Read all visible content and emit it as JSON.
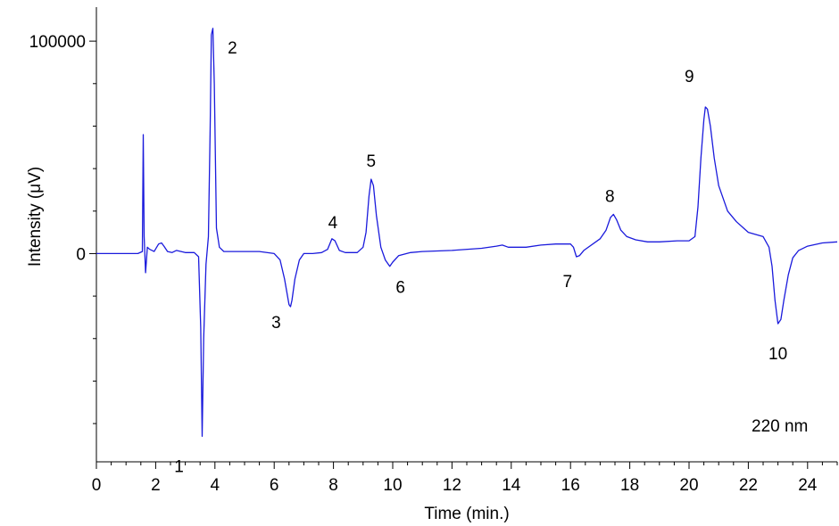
{
  "chart_data": {
    "type": "line",
    "xlabel": "Time (min.)",
    "ylabel": "Intensity (μV)",
    "annotation": "220 nm",
    "xlim": [
      0,
      25
    ],
    "ylim": [
      -98000,
      116000
    ],
    "x_ticks": [
      {
        "value": 0,
        "label": "0"
      },
      {
        "value": 2,
        "label": "2"
      },
      {
        "value": 4,
        "label": "4"
      },
      {
        "value": 6,
        "label": "6"
      },
      {
        "value": 8,
        "label": "8"
      },
      {
        "value": 10,
        "label": "10"
      },
      {
        "value": 12,
        "label": "12"
      },
      {
        "value": 14,
        "label": "14"
      },
      {
        "value": 16,
        "label": "16"
      },
      {
        "value": 18,
        "label": "18"
      },
      {
        "value": 20,
        "label": "20"
      },
      {
        "value": 22,
        "label": "22"
      },
      {
        "value": 24,
        "label": "24"
      }
    ],
    "y_ticks": [
      {
        "value": 0,
        "label": "0"
      },
      {
        "value": 100000,
        "label": "100000"
      }
    ],
    "peaks": [
      {
        "label": "1",
        "time": 3.57,
        "height": -86000
      },
      {
        "label": "2",
        "time": 3.93,
        "height": 106000
      },
      {
        "label": "3",
        "time": 6.55,
        "height": -25000
      },
      {
        "label": "4",
        "time": 7.98,
        "height": 7000
      },
      {
        "label": "5",
        "time": 9.27,
        "height": 35000
      },
      {
        "label": "6",
        "time": 9.9,
        "height": -6000
      },
      {
        "label": "7",
        "time": 16.2,
        "height": -1500
      },
      {
        "label": "8",
        "time": 17.45,
        "height": 18500
      },
      {
        "label": "9",
        "time": 20.55,
        "height": 69000
      },
      {
        "label": "10",
        "time": 23.0,
        "height": -33000
      }
    ],
    "series": [
      {
        "color": "#1a1adc",
        "x": [
          0,
          1.4,
          1.55,
          1.58,
          1.61,
          1.66,
          1.72,
          1.8,
          1.95,
          2.1,
          2.2,
          2.28,
          2.4,
          2.55,
          2.7,
          3.0,
          3.3,
          3.45,
          3.52,
          3.57,
          3.62,
          3.7,
          3.78,
          3.84,
          3.88,
          3.93,
          3.98,
          4.05,
          4.15,
          4.3,
          4.6,
          5.0,
          5.5,
          6.0,
          6.2,
          6.35,
          6.5,
          6.55,
          6.6,
          6.7,
          6.85,
          7.0,
          7.3,
          7.6,
          7.8,
          7.95,
          8.05,
          8.2,
          8.4,
          8.8,
          9.0,
          9.1,
          9.2,
          9.27,
          9.35,
          9.45,
          9.6,
          9.75,
          9.9,
          10.0,
          10.2,
          10.6,
          11.0,
          12.0,
          13.0,
          13.5,
          13.7,
          13.9,
          14.5,
          15.0,
          15.5,
          16.0,
          16.1,
          16.2,
          16.3,
          16.45,
          17.0,
          17.2,
          17.35,
          17.45,
          17.55,
          17.7,
          17.9,
          18.2,
          18.6,
          19.0,
          19.6,
          20.0,
          20.2,
          20.3,
          20.4,
          20.5,
          20.55,
          20.62,
          20.72,
          20.85,
          21.0,
          21.3,
          21.6,
          22.0,
          22.5,
          22.7,
          22.8,
          22.9,
          23.0,
          23.1,
          23.2,
          23.35,
          23.5,
          23.7,
          24.0,
          24.5,
          25.0
        ],
        "y": [
          0,
          0,
          1000,
          56000,
          8000,
          -9000,
          3000,
          2000,
          1000,
          4500,
          5000,
          3500,
          1000,
          500,
          1500,
          500,
          500,
          -1500,
          -35000,
          -86000,
          -40000,
          -5000,
          8000,
          60000,
          103000,
          106000,
          80000,
          12000,
          3000,
          1000,
          1000,
          1000,
          1000,
          0,
          -3000,
          -12000,
          -24000,
          -25000,
          -22000,
          -12000,
          -3000,
          0,
          0,
          500,
          2000,
          7000,
          6000,
          1500,
          500,
          500,
          3000,
          10000,
          27000,
          35000,
          32000,
          18000,
          3000,
          -3000,
          -6000,
          -4000,
          -1000,
          500,
          1000,
          1500,
          2500,
          3500,
          4000,
          3000,
          3000,
          4000,
          4500,
          4500,
          3000,
          -1500,
          -1000,
          1500,
          7000,
          11000,
          17000,
          18500,
          16000,
          11000,
          8000,
          6500,
          5500,
          5500,
          6000,
          6000,
          8000,
          22000,
          45000,
          63000,
          69000,
          68000,
          60000,
          45000,
          32000,
          20000,
          15000,
          10000,
          8000,
          3000,
          -6000,
          -22000,
          -33000,
          -31000,
          -22000,
          -10000,
          -2000,
          1500,
          3500,
          5000,
          5500
        ]
      }
    ]
  }
}
